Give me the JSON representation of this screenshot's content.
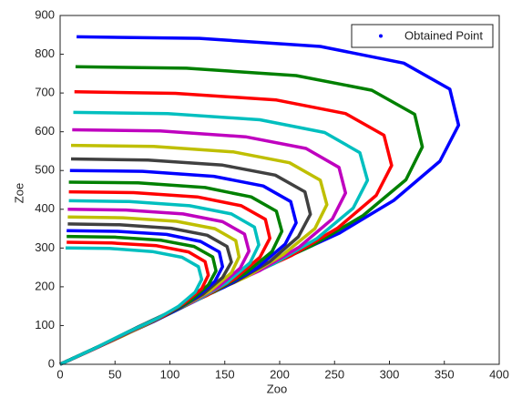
{
  "chart_data": {
    "type": "line",
    "xlabel": "Zoo",
    "ylabel": "Zoe",
    "legend": {
      "label": "Obtained Point",
      "color": "#0000ff",
      "position": "upper right"
    },
    "xlim": [
      0,
      400
    ],
    "ylim": [
      0,
      900
    ],
    "xticks": [
      0,
      50,
      100,
      150,
      200,
      250,
      300,
      350,
      400
    ],
    "yticks": [
      0,
      100,
      200,
      300,
      400,
      500,
      600,
      700,
      800,
      900
    ],
    "series": [
      {
        "color": "#0000ff",
        "x": [
          15,
          127,
          237,
          313,
          355,
          363,
          346,
          304,
          254,
          169,
          85,
          0
        ],
        "values": [
          845,
          841,
          820,
          777,
          710,
          617,
          524,
          423,
          338,
          228,
          110,
          0
        ]
      },
      {
        "color": "#008000",
        "x": [
          14,
          115,
          215,
          284,
          323,
          330,
          315,
          276,
          230,
          154,
          77,
          0
        ],
        "values": [
          768,
          764,
          745,
          707,
          645,
          561,
          476,
          384,
          307,
          207,
          100,
          0
        ]
      },
      {
        "color": "#ff0000",
        "x": [
          13,
          105,
          197,
          260,
          295,
          302,
          288,
          253,
          211,
          141,
          70,
          0
        ],
        "values": [
          703,
          699,
          682,
          647,
          591,
          513,
          436,
          352,
          281,
          190,
          91,
          0
        ]
      },
      {
        "color": "#00bfbf",
        "x": [
          12,
          98,
          182,
          241,
          273,
          280,
          267,
          234,
          195,
          130,
          65,
          0
        ],
        "values": [
          650,
          647,
          631,
          598,
          546,
          475,
          403,
          325,
          260,
          176,
          85,
          0
        ]
      },
      {
        "color": "#bf00bf",
        "x": [
          11,
          91,
          169,
          224,
          254,
          260,
          248,
          218,
          182,
          121,
          61,
          0
        ],
        "values": [
          605,
          602,
          587,
          557,
          508,
          442,
          375,
          303,
          242,
          163,
          79,
          0
        ]
      },
      {
        "color": "#bfbf00",
        "x": [
          10,
          85,
          158,
          209,
          237,
          243,
          232,
          203,
          170,
          113,
          57,
          0
        ],
        "values": [
          565,
          562,
          548,
          520,
          475,
          412,
          350,
          283,
          226,
          153,
          73,
          0
        ]
      },
      {
        "color": "#404040",
        "x": [
          10,
          80,
          148,
          196,
          223,
          228,
          217,
          191,
          159,
          106,
          53,
          0
        ],
        "values": [
          530,
          527,
          514,
          488,
          445,
          387,
          329,
          265,
          212,
          143,
          69,
          0
        ]
      },
      {
        "color": "#0000ff",
        "x": [
          9,
          75,
          140,
          185,
          210,
          215,
          205,
          180,
          150,
          100,
          50,
          0
        ],
        "values": [
          500,
          498,
          485,
          460,
          420,
          365,
          310,
          250,
          200,
          135,
          65,
          0
        ]
      },
      {
        "color": "#008000",
        "x": [
          8,
          71,
          132,
          174,
          197,
          202,
          193,
          169,
          141,
          94,
          47,
          0
        ],
        "values": [
          470,
          468,
          456,
          432,
          395,
          343,
          291,
          235,
          188,
          127,
          61,
          0
        ]
      },
      {
        "color": "#ff0000",
        "x": [
          8,
          67,
          125,
          165,
          187,
          191,
          182,
          160,
          134,
          89,
          45,
          0
        ],
        "values": [
          445,
          443,
          432,
          409,
          374,
          325,
          276,
          223,
          178,
          120,
          58,
          0
        ]
      },
      {
        "color": "#00bfbf",
        "x": [
          8,
          63,
          118,
          156,
          177,
          181,
          173,
          152,
          127,
          84,
          42,
          0
        ],
        "values": [
          422,
          420,
          409,
          388,
          354,
          308,
          262,
          211,
          169,
          114,
          55,
          0
        ]
      },
      {
        "color": "#bf00bf",
        "x": [
          7,
          60,
          112,
          148,
          168,
          172,
          164,
          144,
          120,
          80,
          40,
          0
        ],
        "values": [
          400,
          398,
          388,
          368,
          336,
          292,
          248,
          200,
          160,
          108,
          52,
          0
        ]
      },
      {
        "color": "#bfbf00",
        "x": [
          7,
          57,
          106,
          141,
          160,
          163,
          156,
          137,
          114,
          76,
          38,
          0
        ],
        "values": [
          380,
          378,
          369,
          350,
          319,
          277,
          236,
          190,
          152,
          103,
          49,
          0
        ]
      },
      {
        "color": "#404040",
        "x": [
          7,
          54,
          101,
          134,
          152,
          156,
          148,
          130,
          109,
          72,
          36,
          0
        ],
        "values": [
          362,
          360,
          351,
          333,
          304,
          264,
          224,
          181,
          145,
          98,
          47,
          0
        ]
      },
      {
        "color": "#0000ff",
        "x": [
          6,
          52,
          97,
          128,
          145,
          148,
          141,
          124,
          104,
          69,
          35,
          0
        ],
        "values": [
          345,
          343,
          335,
          317,
          290,
          252,
          214,
          173,
          138,
          93,
          45,
          0
        ]
      },
      {
        "color": "#008000",
        "x": [
          6,
          50,
          92,
          122,
          139,
          142,
          135,
          119,
          99,
          66,
          33,
          0
        ],
        "values": [
          330,
          328,
          320,
          304,
          277,
          241,
          205,
          165,
          132,
          89,
          43,
          0
        ]
      },
      {
        "color": "#ff0000",
        "x": [
          6,
          47,
          88,
          117,
          132,
          135,
          129,
          113,
          95,
          63,
          32,
          0
        ],
        "values": [
          315,
          313,
          306,
          290,
          265,
          230,
          195,
          158,
          126,
          85,
          41,
          0
        ]
      },
      {
        "color": "#00bfbf",
        "x": [
          5,
          45,
          84,
          111,
          126,
          129,
          123,
          108,
          90,
          60,
          30,
          0
        ],
        "values": [
          300,
          299,
          291,
          276,
          252,
          219,
          186,
          150,
          120,
          81,
          39,
          0
        ]
      }
    ]
  }
}
